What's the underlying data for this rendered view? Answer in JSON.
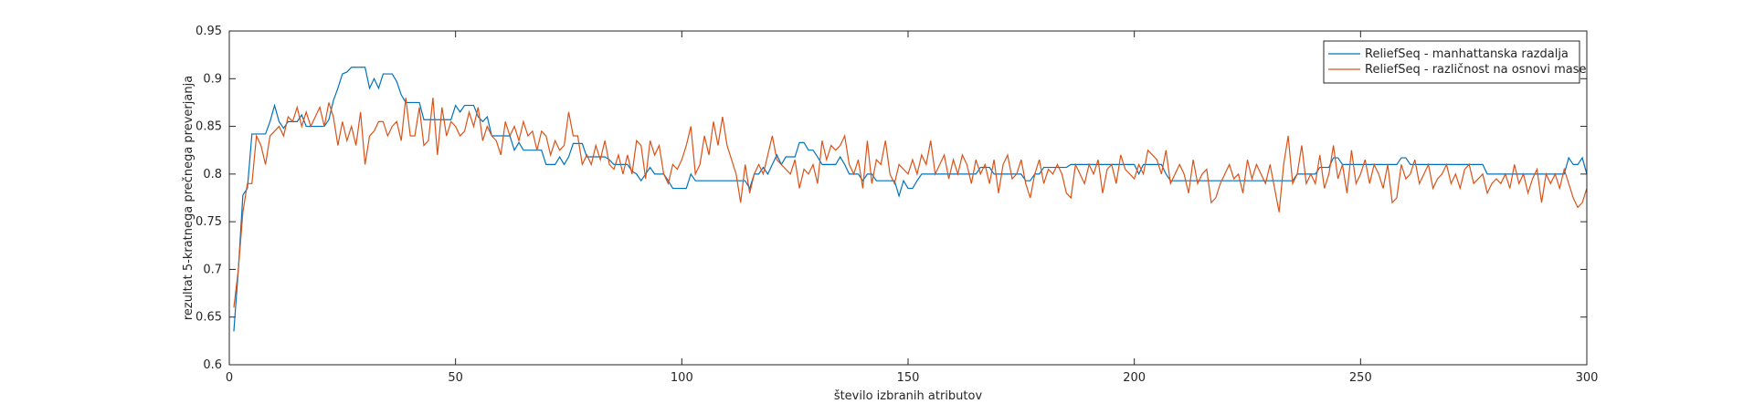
{
  "chart_data": {
    "type": "line",
    "x_label": "število izbranih atributov",
    "y_label": "rezultat 5-kratnega prečnega preverjanja",
    "xlim": [
      0,
      300
    ],
    "xticks": [
      0,
      50,
      100,
      150,
      200,
      250,
      300
    ],
    "ylim": [
      0.6,
      0.95
    ],
    "yticks": [
      0.6,
      0.65,
      0.7,
      0.75,
      0.8,
      0.85,
      0.9,
      0.95
    ],
    "legend": "upper right",
    "x": [
      1,
      2,
      3,
      4,
      5,
      6,
      7,
      8,
      9,
      10,
      11,
      12,
      13,
      14,
      15,
      16,
      17,
      18,
      19,
      20,
      21,
      22,
      23,
      24,
      25,
      26,
      27,
      28,
      29,
      30,
      31,
      32,
      33,
      34,
      35,
      36,
      37,
      38,
      39,
      40,
      41,
      42,
      43,
      44,
      45,
      46,
      47,
      48,
      49,
      50,
      51,
      52,
      53,
      54,
      55,
      56,
      57,
      58,
      59,
      60,
      61,
      62,
      63,
      64,
      65,
      66,
      67,
      68,
      69,
      70,
      71,
      72,
      73,
      74,
      75,
      76,
      77,
      78,
      79,
      80,
      81,
      82,
      83,
      84,
      85,
      86,
      87,
      88,
      89,
      90,
      91,
      92,
      93,
      94,
      95,
      96,
      97,
      98,
      99,
      100,
      101,
      102,
      103,
      104,
      105,
      106,
      107,
      108,
      109,
      110,
      111,
      112,
      113,
      114,
      115,
      116,
      117,
      118,
      119,
      120,
      121,
      122,
      123,
      124,
      125,
      126,
      127,
      128,
      129,
      130,
      131,
      132,
      133,
      134,
      135,
      136,
      137,
      138,
      139,
      140,
      141,
      142,
      143,
      144,
      145,
      146,
      147,
      148,
      149,
      150,
      151,
      152,
      153,
      154,
      155,
      156,
      157,
      158,
      159,
      160,
      161,
      162,
      163,
      164,
      165,
      166,
      167,
      168,
      169,
      170,
      171,
      172,
      173,
      174,
      175,
      176,
      177,
      178,
      179,
      180,
      181,
      182,
      183,
      184,
      185,
      186,
      187,
      188,
      189,
      190,
      191,
      192,
      193,
      194,
      195,
      196,
      197,
      198,
      199,
      200,
      201,
      202,
      203,
      204,
      205,
      206,
      207,
      208,
      209,
      210,
      211,
      212,
      213,
      214,
      215,
      216,
      217,
      218,
      219,
      220,
      221,
      222,
      223,
      224,
      225,
      226,
      227,
      228,
      229,
      230,
      231,
      232,
      233,
      234,
      235,
      236,
      237,
      238,
      239,
      240,
      241,
      242,
      243,
      244,
      245,
      246,
      247,
      248,
      249,
      250,
      251,
      252,
      253,
      254,
      255,
      256,
      257,
      258,
      259,
      260,
      261,
      262,
      263,
      264,
      265,
      266,
      267,
      268,
      269,
      270,
      271,
      272,
      273,
      274,
      275,
      276,
      277,
      278,
      279,
      280,
      281,
      282,
      283,
      284,
      285,
      286,
      287,
      288,
      289,
      290,
      291,
      292,
      293,
      294,
      295,
      296,
      297,
      298,
      299,
      300
    ],
    "series": [
      {
        "name": "ReliefSeq - manhattanska razdalja",
        "color": "#0072bd",
        "values": [
          0.635,
          0.7,
          0.778,
          0.785,
          0.842,
          0.842,
          0.842,
          0.842,
          0.855,
          0.872,
          0.855,
          0.848,
          0.855,
          0.855,
          0.855,
          0.862,
          0.85,
          0.85,
          0.85,
          0.85,
          0.85,
          0.857,
          0.877,
          0.89,
          0.905,
          0.907,
          0.912,
          0.912,
          0.912,
          0.912,
          0.89,
          0.9,
          0.89,
          0.905,
          0.905,
          0.905,
          0.897,
          0.883,
          0.875,
          0.875,
          0.875,
          0.875,
          0.857,
          0.857,
          0.857,
          0.857,
          0.857,
          0.857,
          0.857,
          0.872,
          0.865,
          0.872,
          0.872,
          0.872,
          0.86,
          0.855,
          0.86,
          0.84,
          0.84,
          0.84,
          0.84,
          0.84,
          0.825,
          0.833,
          0.825,
          0.825,
          0.825,
          0.825,
          0.825,
          0.81,
          0.81,
          0.81,
          0.818,
          0.81,
          0.818,
          0.832,
          0.832,
          0.832,
          0.818,
          0.818,
          0.818,
          0.818,
          0.818,
          0.815,
          0.81,
          0.81,
          0.81,
          0.81,
          0.803,
          0.8,
          0.793,
          0.8,
          0.807,
          0.8,
          0.8,
          0.8,
          0.793,
          0.785,
          0.785,
          0.785,
          0.785,
          0.8,
          0.793,
          0.793,
          0.793,
          0.793,
          0.793,
          0.793,
          0.793,
          0.793,
          0.793,
          0.793,
          0.793,
          0.793,
          0.785,
          0.8,
          0.8,
          0.807,
          0.8,
          0.81,
          0.82,
          0.81,
          0.818,
          0.818,
          0.818,
          0.833,
          0.833,
          0.825,
          0.825,
          0.818,
          0.81,
          0.81,
          0.81,
          0.81,
          0.818,
          0.81,
          0.8,
          0.8,
          0.8,
          0.793,
          0.8,
          0.8,
          0.793,
          0.793,
          0.793,
          0.793,
          0.793,
          0.777,
          0.793,
          0.785,
          0.785,
          0.793,
          0.8,
          0.8,
          0.8,
          0.8,
          0.8,
          0.8,
          0.8,
          0.8,
          0.8,
          0.8,
          0.8,
          0.8,
          0.8,
          0.807,
          0.807,
          0.807,
          0.8,
          0.8,
          0.8,
          0.8,
          0.8,
          0.8,
          0.8,
          0.793,
          0.793,
          0.8,
          0.8,
          0.807,
          0.807,
          0.807,
          0.807,
          0.807,
          0.807,
          0.81,
          0.81,
          0.81,
          0.81,
          0.81,
          0.81,
          0.81,
          0.81,
          0.81,
          0.81,
          0.81,
          0.81,
          0.81,
          0.81,
          0.81,
          0.8,
          0.81,
          0.81,
          0.81,
          0.81,
          0.81,
          0.8,
          0.793,
          0.793,
          0.793,
          0.793,
          0.793,
          0.793,
          0.793,
          0.793,
          0.793,
          0.793,
          0.793,
          0.793,
          0.793,
          0.793,
          0.793,
          0.793,
          0.793,
          0.793,
          0.793,
          0.793,
          0.793,
          0.793,
          0.793,
          0.793,
          0.793,
          0.793,
          0.793,
          0.793,
          0.8,
          0.8,
          0.8,
          0.8,
          0.8,
          0.807,
          0.807,
          0.807,
          0.817,
          0.817,
          0.81,
          0.81,
          0.81,
          0.81,
          0.81,
          0.81,
          0.81,
          0.81,
          0.81,
          0.81,
          0.81,
          0.81,
          0.81,
          0.817,
          0.817,
          0.81,
          0.81,
          0.81,
          0.81,
          0.81,
          0.81,
          0.81,
          0.81,
          0.81,
          0.81,
          0.81,
          0.81,
          0.81,
          0.81,
          0.81,
          0.81,
          0.81,
          0.8,
          0.8,
          0.8,
          0.8,
          0.8,
          0.8,
          0.8,
          0.8,
          0.8,
          0.8,
          0.8,
          0.8,
          0.8,
          0.8,
          0.8,
          0.8,
          0.8,
          0.8,
          0.817,
          0.81,
          0.81,
          0.817,
          0.8
        ]
      },
      {
        "name": "ReliefSeq - različnost na osnovi mase",
        "color": "#d95319",
        "values": [
          0.66,
          0.7,
          0.76,
          0.79,
          0.79,
          0.84,
          0.83,
          0.81,
          0.84,
          0.845,
          0.85,
          0.84,
          0.86,
          0.855,
          0.87,
          0.85,
          0.865,
          0.85,
          0.86,
          0.87,
          0.85,
          0.875,
          0.86,
          0.83,
          0.855,
          0.835,
          0.85,
          0.83,
          0.865,
          0.81,
          0.84,
          0.845,
          0.855,
          0.855,
          0.84,
          0.85,
          0.855,
          0.835,
          0.88,
          0.84,
          0.84,
          0.87,
          0.83,
          0.835,
          0.88,
          0.82,
          0.87,
          0.84,
          0.855,
          0.85,
          0.84,
          0.845,
          0.865,
          0.85,
          0.87,
          0.835,
          0.85,
          0.84,
          0.835,
          0.82,
          0.855,
          0.84,
          0.85,
          0.835,
          0.855,
          0.84,
          0.845,
          0.825,
          0.845,
          0.84,
          0.82,
          0.835,
          0.825,
          0.83,
          0.865,
          0.84,
          0.84,
          0.81,
          0.82,
          0.81,
          0.83,
          0.815,
          0.835,
          0.81,
          0.805,
          0.82,
          0.8,
          0.82,
          0.8,
          0.835,
          0.83,
          0.795,
          0.835,
          0.82,
          0.83,
          0.8,
          0.79,
          0.81,
          0.805,
          0.815,
          0.83,
          0.85,
          0.8,
          0.81,
          0.84,
          0.82,
          0.855,
          0.83,
          0.86,
          0.83,
          0.815,
          0.8,
          0.77,
          0.81,
          0.78,
          0.8,
          0.81,
          0.8,
          0.82,
          0.84,
          0.815,
          0.81,
          0.805,
          0.8,
          0.815,
          0.785,
          0.805,
          0.8,
          0.81,
          0.79,
          0.835,
          0.815,
          0.83,
          0.825,
          0.83,
          0.84,
          0.81,
          0.8,
          0.815,
          0.785,
          0.835,
          0.79,
          0.815,
          0.81,
          0.835,
          0.8,
          0.79,
          0.81,
          0.805,
          0.8,
          0.815,
          0.8,
          0.82,
          0.81,
          0.835,
          0.8,
          0.81,
          0.82,
          0.795,
          0.815,
          0.8,
          0.82,
          0.81,
          0.79,
          0.815,
          0.8,
          0.81,
          0.79,
          0.815,
          0.78,
          0.81,
          0.82,
          0.795,
          0.8,
          0.815,
          0.79,
          0.775,
          0.8,
          0.815,
          0.79,
          0.805,
          0.8,
          0.81,
          0.8,
          0.78,
          0.775,
          0.81,
          0.8,
          0.79,
          0.81,
          0.8,
          0.815,
          0.78,
          0.805,
          0.81,
          0.79,
          0.82,
          0.805,
          0.8,
          0.795,
          0.81,
          0.8,
          0.825,
          0.82,
          0.815,
          0.8,
          0.825,
          0.79,
          0.8,
          0.81,
          0.8,
          0.78,
          0.815,
          0.79,
          0.8,
          0.805,
          0.77,
          0.775,
          0.79,
          0.8,
          0.81,
          0.795,
          0.8,
          0.78,
          0.815,
          0.795,
          0.81,
          0.8,
          0.79,
          0.81,
          0.785,
          0.76,
          0.81,
          0.84,
          0.79,
          0.8,
          0.83,
          0.79,
          0.8,
          0.79,
          0.82,
          0.785,
          0.8,
          0.83,
          0.795,
          0.81,
          0.78,
          0.825,
          0.79,
          0.8,
          0.815,
          0.79,
          0.81,
          0.8,
          0.785,
          0.81,
          0.77,
          0.775,
          0.81,
          0.795,
          0.8,
          0.815,
          0.79,
          0.8,
          0.81,
          0.785,
          0.795,
          0.8,
          0.81,
          0.79,
          0.8,
          0.785,
          0.805,
          0.81,
          0.79,
          0.795,
          0.8,
          0.78,
          0.79,
          0.795,
          0.79,
          0.8,
          0.785,
          0.81,
          0.79,
          0.8,
          0.78,
          0.795,
          0.805,
          0.77,
          0.8,
          0.79,
          0.8,
          0.785,
          0.805,
          0.79,
          0.775,
          0.765,
          0.77,
          0.785
        ]
      }
    ]
  }
}
